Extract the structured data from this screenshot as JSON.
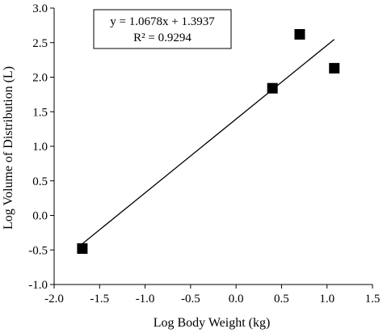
{
  "chart_data": {
    "type": "scatter",
    "xlabel": "Log Body Weight (kg)",
    "ylabel": "Log Volume of Distribution (L)",
    "xlim": [
      -2.0,
      1.5
    ],
    "ylim": [
      -1.0,
      3.0
    ],
    "x_ticks": [
      "-2.0",
      "-1.5",
      "-1.0",
      "-0.5",
      "0.0",
      "0.5",
      "1.0",
      "1.5"
    ],
    "y_ticks": [
      "-1.0",
      "-0.5",
      "0.0",
      "0.5",
      "1.0",
      "1.5",
      "2.0",
      "2.5",
      "3.0"
    ],
    "grid": false,
    "marker": "square",
    "points": [
      {
        "x": -1.69,
        "y": -0.48
      },
      {
        "x": 0.4,
        "y": 1.84
      },
      {
        "x": 0.7,
        "y": 2.62
      },
      {
        "x": 1.08,
        "y": 2.13
      }
    ],
    "trendline": {
      "slope": 1.0678,
      "intercept": 1.3937,
      "x_range": [
        -1.69,
        1.08
      ],
      "equation": "y = 1.0678x + 1.3937",
      "r_squared": "R² = 0.9294"
    }
  }
}
